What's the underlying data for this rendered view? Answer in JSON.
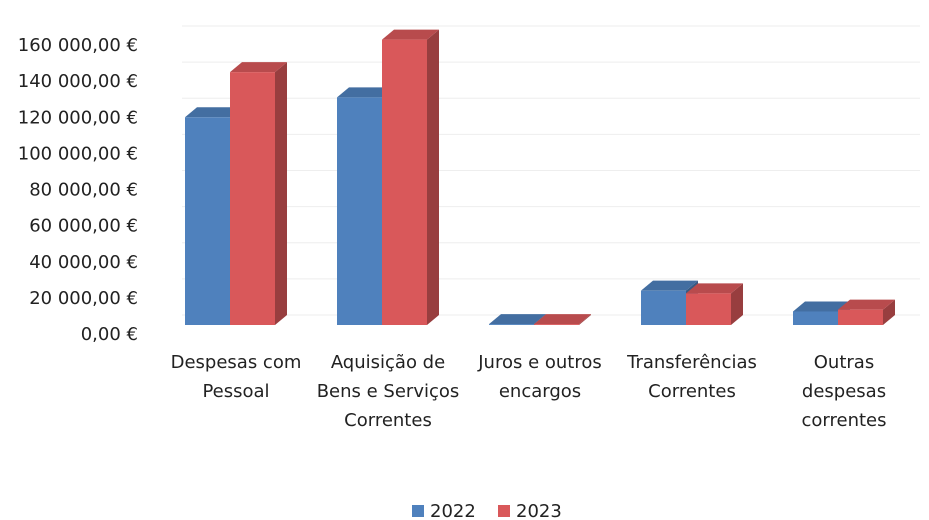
{
  "chart_data": {
    "type": "bar3d",
    "categories": [
      "Despesas com Pessoal",
      "Aquisição de Bens e Serviços Correntes",
      "Juros e outros encargos",
      "Transferências Correntes",
      "Outras despesas correntes"
    ],
    "series": [
      {
        "name": "2022",
        "color": "#4f81bd",
        "values": [
          115000,
          126000,
          500,
          19000,
          7500
        ]
      },
      {
        "name": "2023",
        "color": "#d9585a",
        "values": [
          140000,
          158000,
          500,
          17500,
          8500
        ]
      }
    ],
    "ylim": [
      0,
      160000
    ],
    "yticks": [
      {
        "value": 0,
        "label": "0,00 €"
      },
      {
        "value": 20000,
        "label": "20 000,00 €"
      },
      {
        "value": 40000,
        "label": "40 000,00 €"
      },
      {
        "value": 60000,
        "label": "60 000,00 €"
      },
      {
        "value": 80000,
        "label": "80 000,00 €"
      },
      {
        "value": 100000,
        "label": "100 000,00 €"
      },
      {
        "value": 120000,
        "label": "120 000,00 €"
      },
      {
        "value": 140000,
        "label": "140 000,00 €"
      },
      {
        "value": 160000,
        "label": "160 000,00 €"
      }
    ],
    "grid": true,
    "legend": "bottom"
  }
}
